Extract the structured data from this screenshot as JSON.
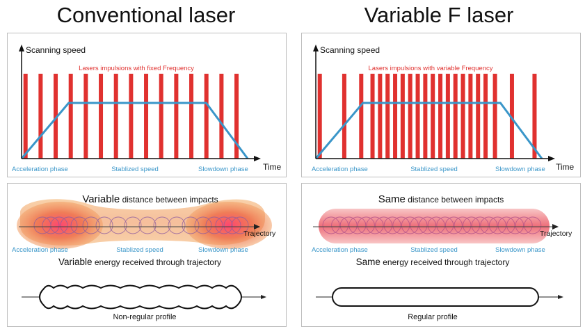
{
  "colors": {
    "pulse": "#e0312f",
    "speed_line": "#3a96c9",
    "phase_label": "#3a96c9",
    "pulse_label": "#e0312f",
    "axis": "#111111"
  },
  "left": {
    "title": "Conventional laser",
    "chart": {
      "y_label": "Scanning speed",
      "x_label": "Time",
      "pulse_caption": "Lasers impulsions with fixed Frequency",
      "phases": [
        "Acceleration phase",
        "Stablized speed",
        "Slowdown phase"
      ],
      "pulse_times": [
        0.1,
        0.9,
        1.7,
        2.5,
        3.3,
        4.1,
        4.9,
        5.7,
        6.5,
        7.3,
        8.1,
        8.9,
        9.7,
        10.5,
        11.3
      ],
      "speed_profile": [
        [
          0,
          0
        ],
        [
          2.5,
          1
        ],
        [
          9.8,
          1
        ],
        [
          12,
          0
        ]
      ]
    },
    "trajectory": {
      "headline_bold": "Variable",
      "headline_rest": " distance between impacts",
      "axis_label": "Trajectory",
      "phases": [
        "Acceleration phase",
        "Stablized speed",
        "Slowdown phase"
      ],
      "energy_bold": "Variable",
      "energy_rest": " energy received through trajectory",
      "profile_caption": "Non-regular profile"
    }
  },
  "right": {
    "title": "Variable F laser",
    "chart": {
      "y_label": "Scanning speed",
      "x_label": "Time",
      "pulse_caption": "Lasers impulsions with variable Frequency",
      "phases": [
        "Acceleration phase",
        "Stablized speed",
        "Slowdown phase"
      ],
      "pulse_times": [
        0.1,
        1.4,
        2.3,
        2.9,
        3.3,
        3.7,
        4.1,
        4.5,
        4.9,
        5.3,
        5.7,
        6.1,
        6.5,
        6.9,
        7.3,
        7.7,
        8.1,
        8.5,
        8.9,
        9.4,
        10.3,
        11.5
      ],
      "speed_profile": [
        [
          0,
          0
        ],
        [
          2.5,
          1
        ],
        [
          9.8,
          1
        ],
        [
          12,
          0
        ]
      ]
    },
    "trajectory": {
      "headline_bold": "Same",
      "headline_rest": " distance between impacts",
      "axis_label": "Trajectory",
      "phases": [
        "Acceleration phase",
        "Stablized speed",
        "Slowdown phase"
      ],
      "energy_bold": "Same",
      "energy_rest": " energy received through trajectory",
      "profile_caption": "Regular profile"
    }
  }
}
